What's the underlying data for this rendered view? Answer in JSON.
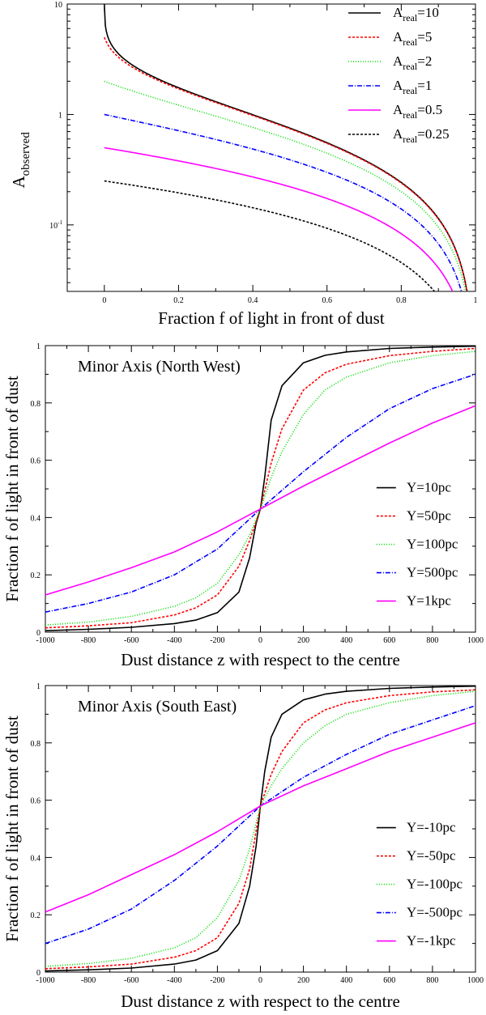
{
  "chart_data": [
    {
      "type": "line",
      "yscale": "log",
      "xlabel": "Fraction f of light in front of dust",
      "ylabel": "A",
      "ylabel_sub": "observed",
      "xlim": [
        -0.1,
        1.0
      ],
      "ylim": [
        0.025,
        10
      ],
      "xticks": [
        0,
        0.2,
        0.4,
        0.6,
        0.8,
        1
      ],
      "xtick_labels": [
        "0",
        "0.2",
        "0.4",
        "0.6",
        "0.8",
        "1"
      ],
      "ytick_labels": [
        {
          "value": 10,
          "base": "10",
          "exp": ""
        },
        {
          "value": 1,
          "base": "1",
          "exp": ""
        },
        {
          "value": 0.1,
          "base": "10",
          "exp": "-1"
        }
      ],
      "legend": "top-right",
      "series": [
        {
          "name": "A_real=10",
          "label_main": "A",
          "label_sub": "real",
          "label_val": "=10",
          "color": "#000000",
          "dash": "",
          "A_real": 10
        },
        {
          "name": "A_real=5",
          "label_main": "A",
          "label_sub": "real",
          "label_val": "=5",
          "color": "#ff0000",
          "dash": "3,2",
          "A_real": 5
        },
        {
          "name": "A_real=2",
          "label_main": "A",
          "label_sub": "real",
          "label_val": "=2",
          "color": "#00dd00",
          "dash": "1,2",
          "A_real": 2
        },
        {
          "name": "A_real=1",
          "label_main": "A",
          "label_sub": "real",
          "label_val": "=1",
          "color": "#0000ff",
          "dash": "6,2,1,2",
          "A_real": 1
        },
        {
          "name": "A_real=0.5",
          "label_main": "A",
          "label_sub": "real",
          "label_val": "=0.5",
          "color": "#ff00ff",
          "dash": "",
          "A_real": 0.5
        },
        {
          "name": "A_real=0.25",
          "label_main": "A",
          "label_sub": "real",
          "label_val": "=0.25",
          "color": "#000000",
          "dash": "3,2",
          "A_real": 0.25
        }
      ]
    },
    {
      "type": "line",
      "title": "Minor Axis (North West)",
      "xlabel": "Dust distance z with respect to the centre",
      "ylabel": "Fraction f of light in front of dust",
      "xlim": [
        -1000,
        1000
      ],
      "ylim": [
        0,
        1
      ],
      "xticks": [
        -1000,
        -800,
        -600,
        -400,
        -200,
        0,
        200,
        400,
        600,
        800,
        1000
      ],
      "yticks": [
        0,
        0.2,
        0.4,
        0.6,
        0.8,
        1
      ],
      "ytick_labels": [
        "0",
        "0.2",
        "0.4",
        "0.6",
        "0.8",
        "1"
      ],
      "legend": "center-right",
      "series": [
        {
          "name": "Y=10pc",
          "label": "Y=10pc",
          "color": "#000000",
          "dash": "",
          "x": [
            -1000,
            -800,
            -600,
            -400,
            -300,
            -200,
            -100,
            -50,
            -20,
            0,
            20,
            50,
            100,
            200,
            300,
            400,
            600,
            800,
            1000
          ],
          "y": [
            0.005,
            0.01,
            0.017,
            0.03,
            0.042,
            0.068,
            0.14,
            0.26,
            0.38,
            0.43,
            0.54,
            0.74,
            0.86,
            0.94,
            0.966,
            0.978,
            0.99,
            0.995,
            0.998
          ]
        },
        {
          "name": "Y=50pc",
          "label": "Y=50pc",
          "color": "#ff0000",
          "dash": "3,2",
          "x": [
            -1000,
            -800,
            -600,
            -400,
            -300,
            -200,
            -100,
            -50,
            0,
            50,
            100,
            200,
            300,
            400,
            600,
            800,
            1000
          ],
          "y": [
            0.015,
            0.022,
            0.033,
            0.06,
            0.085,
            0.13,
            0.23,
            0.32,
            0.43,
            0.59,
            0.71,
            0.845,
            0.905,
            0.935,
            0.965,
            0.98,
            0.99
          ]
        },
        {
          "name": "Y=100pc",
          "label": "Y=100pc",
          "color": "#00dd00",
          "dash": "1,2",
          "x": [
            -1000,
            -800,
            -600,
            -400,
            -300,
            -200,
            -100,
            -50,
            0,
            50,
            100,
            200,
            300,
            400,
            600,
            800,
            1000
          ],
          "y": [
            0.025,
            0.035,
            0.055,
            0.09,
            0.12,
            0.17,
            0.27,
            0.34,
            0.43,
            0.54,
            0.63,
            0.76,
            0.845,
            0.89,
            0.94,
            0.965,
            0.98
          ]
        },
        {
          "name": "Y=500pc",
          "label": "Y=500pc",
          "color": "#0000ff",
          "dash": "6,2,1,2",
          "x": [
            -1000,
            -800,
            -600,
            -400,
            -200,
            0,
            200,
            400,
            600,
            800,
            1000
          ],
          "y": [
            0.07,
            0.1,
            0.14,
            0.2,
            0.29,
            0.43,
            0.56,
            0.68,
            0.78,
            0.85,
            0.9
          ]
        },
        {
          "name": "Y=1kpc",
          "label": "Y=1kpc",
          "color": "#ff00ff",
          "dash": "",
          "x": [
            -1000,
            -800,
            -600,
            -400,
            -200,
            0,
            200,
            400,
            600,
            800,
            1000
          ],
          "y": [
            0.13,
            0.175,
            0.225,
            0.28,
            0.35,
            0.43,
            0.51,
            0.585,
            0.66,
            0.73,
            0.79
          ]
        }
      ]
    },
    {
      "type": "line",
      "title": "Minor Axis (South East)",
      "xlabel": "Dust distance z with respect to the centre",
      "ylabel": "Fraction f of light in front of dust",
      "xlim": [
        -1000,
        1000
      ],
      "ylim": [
        0,
        1
      ],
      "xticks": [
        -1000,
        -800,
        -600,
        -400,
        -200,
        0,
        200,
        400,
        600,
        800,
        1000
      ],
      "yticks": [
        0,
        0.2,
        0.4,
        0.6,
        0.8,
        1
      ],
      "ytick_labels": [
        "0",
        "0.2",
        "0.4",
        "0.6",
        "0.8",
        "1"
      ],
      "legend": "center-right",
      "series": [
        {
          "name": "Y=-10pc",
          "label": "Y=-10pc",
          "color": "#000000",
          "dash": "",
          "x": [
            -1000,
            -800,
            -600,
            -400,
            -300,
            -200,
            -100,
            -50,
            -20,
            0,
            20,
            50,
            100,
            200,
            300,
            400,
            600,
            800,
            1000
          ],
          "y": [
            0.004,
            0.008,
            0.014,
            0.028,
            0.042,
            0.075,
            0.17,
            0.3,
            0.44,
            0.58,
            0.7,
            0.82,
            0.9,
            0.95,
            0.97,
            0.98,
            0.99,
            0.995,
            0.998
          ]
        },
        {
          "name": "Y=-50pc",
          "label": "Y=-50pc",
          "color": "#ff0000",
          "dash": "3,2",
          "x": [
            -1000,
            -800,
            -600,
            -400,
            -300,
            -200,
            -100,
            -50,
            0,
            50,
            100,
            200,
            300,
            400,
            600,
            800,
            1000
          ],
          "y": [
            0.012,
            0.018,
            0.028,
            0.052,
            0.075,
            0.12,
            0.24,
            0.36,
            0.58,
            0.69,
            0.77,
            0.87,
            0.915,
            0.94,
            0.965,
            0.978,
            0.985
          ]
        },
        {
          "name": "Y=-100pc",
          "label": "Y=-100pc",
          "color": "#00dd00",
          "dash": "1,2",
          "x": [
            -1000,
            -800,
            -600,
            -400,
            -300,
            -200,
            -100,
            -50,
            0,
            50,
            100,
            200,
            300,
            400,
            600,
            800,
            1000
          ],
          "y": [
            0.02,
            0.03,
            0.048,
            0.085,
            0.12,
            0.19,
            0.32,
            0.43,
            0.58,
            0.65,
            0.71,
            0.8,
            0.86,
            0.9,
            0.94,
            0.965,
            0.98
          ]
        },
        {
          "name": "Y=-500pc",
          "label": "Y=-500pc",
          "color": "#0000ff",
          "dash": "6,2,1,2",
          "x": [
            -1000,
            -800,
            -600,
            -400,
            -200,
            0,
            200,
            400,
            600,
            800,
            1000
          ],
          "y": [
            0.1,
            0.15,
            0.22,
            0.32,
            0.44,
            0.58,
            0.68,
            0.76,
            0.83,
            0.88,
            0.93
          ]
        },
        {
          "name": "Y=-1kpc",
          "label": "Y=-1kpc",
          "color": "#ff00ff",
          "dash": "",
          "x": [
            -1000,
            -800,
            -600,
            -400,
            -200,
            0,
            200,
            400,
            600,
            800,
            1000
          ],
          "y": [
            0.21,
            0.27,
            0.34,
            0.41,
            0.49,
            0.58,
            0.65,
            0.71,
            0.77,
            0.82,
            0.87
          ]
        }
      ]
    }
  ]
}
